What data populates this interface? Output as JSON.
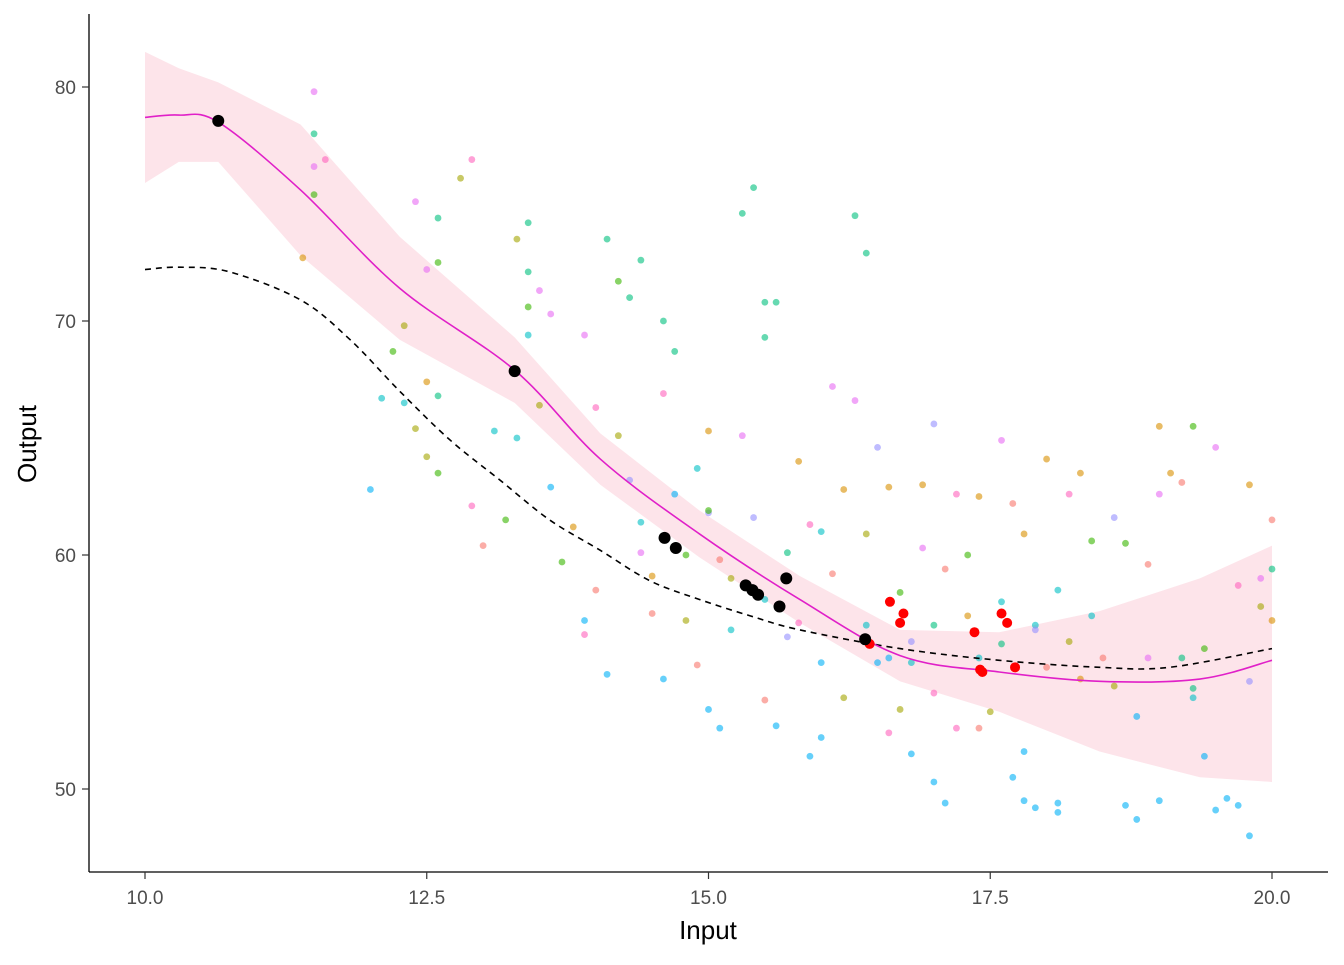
{
  "chart_data": {
    "type": "scatter",
    "title": "",
    "xlabel": "Input",
    "ylabel": "Output",
    "xlim": [
      9.5,
      20.5
    ],
    "ylim": [
      46.4,
      83.1
    ],
    "xticks": [
      10.0,
      12.5,
      15.0,
      17.5,
      20.0
    ],
    "xtick_labels": [
      "10.0",
      "12.5",
      "15.0",
      "17.5",
      "20.0"
    ],
    "yticks": [
      50,
      60,
      70,
      80
    ],
    "ytick_labels": [
      "50",
      "60",
      "70",
      "80"
    ],
    "grid": false,
    "legend": "none",
    "group_colors": [
      "#F8766D",
      "#D89000",
      "#A3A500",
      "#39B600",
      "#00BF7D",
      "#00BFC4",
      "#00B0F6",
      "#9590FF",
      "#E76BF3",
      "#FF62BC"
    ],
    "scatter_points": [
      [
        11.5,
        79.8,
        8
      ],
      [
        11.6,
        76.9,
        9
      ],
      [
        11.5,
        78,
        4
      ],
      [
        11.5,
        75.4,
        3
      ],
      [
        11.4,
        72.7,
        1
      ],
      [
        11.5,
        76.6,
        8
      ],
      [
        12.4,
        75.1,
        8
      ],
      [
        12.6,
        74.4,
        4
      ],
      [
        12.5,
        72.2,
        8
      ],
      [
        12.6,
        72.5,
        3
      ],
      [
        12.8,
        76.1,
        2
      ],
      [
        12.9,
        76.9,
        9
      ],
      [
        12.0,
        62.8,
        6
      ],
      [
        12.1,
        66.7,
        5
      ],
      [
        12.2,
        68.7,
        3
      ],
      [
        12.3,
        69.8,
        2
      ],
      [
        12.5,
        67.4,
        1
      ],
      [
        12.6,
        66.8,
        4
      ],
      [
        12.5,
        64.2,
        2
      ],
      [
        12.6,
        63.5,
        3
      ],
      [
        12.4,
        65.4,
        2
      ],
      [
        12.3,
        66.5,
        5
      ],
      [
        12.9,
        62.1,
        9
      ],
      [
        13.0,
        60.4,
        0
      ],
      [
        13.1,
        65.3,
        5
      ],
      [
        13.2,
        61.5,
        3
      ],
      [
        13.3,
        65.0,
        5
      ],
      [
        13.3,
        73.5,
        2
      ],
      [
        13.4,
        72.1,
        4
      ],
      [
        13.4,
        74.2,
        4
      ],
      [
        13.4,
        70.6,
        3
      ],
      [
        13.4,
        69.4,
        5
      ],
      [
        13.5,
        71.3,
        8
      ],
      [
        13.6,
        70.3,
        8
      ],
      [
        13.5,
        66.4,
        2
      ],
      [
        13.6,
        62.9,
        6
      ],
      [
        13.7,
        59.7,
        3
      ],
      [
        13.8,
        61.2,
        1
      ],
      [
        13.9,
        57.2,
        6
      ],
      [
        13.9,
        69.4,
        8
      ],
      [
        14.0,
        66.3,
        9
      ],
      [
        14.0,
        58.5,
        0
      ],
      [
        14.1,
        73.5,
        4
      ],
      [
        14.2,
        71.7,
        3
      ],
      [
        14.3,
        71.0,
        4
      ],
      [
        14.4,
        72.6,
        4
      ],
      [
        14.2,
        65.1,
        2
      ],
      [
        14.3,
        63.2,
        7
      ],
      [
        14.4,
        61.4,
        5
      ],
      [
        14.5,
        59.1,
        1
      ],
      [
        14.5,
        57.5,
        0
      ],
      [
        14.6,
        70.0,
        4
      ],
      [
        14.7,
        68.7,
        4
      ],
      [
        14.6,
        66.9,
        9
      ],
      [
        14.7,
        62.6,
        6
      ],
      [
        14.8,
        60.0,
        3
      ],
      [
        14.8,
        57.2,
        2
      ],
      [
        14.9,
        55.3,
        0
      ],
      [
        14.9,
        63.7,
        5
      ],
      [
        15.0,
        65.3,
        1
      ],
      [
        15.0,
        61.8,
        7
      ],
      [
        15.1,
        59.8,
        0
      ],
      [
        15.0,
        53.4,
        6
      ],
      [
        15.1,
        52.6,
        6
      ],
      [
        15.2,
        56.8,
        5
      ],
      [
        15.3,
        74.6,
        4
      ],
      [
        15.4,
        75.7,
        4
      ],
      [
        15.5,
        70.8,
        4
      ],
      [
        15.6,
        70.8,
        4
      ],
      [
        15.5,
        69.3,
        4
      ],
      [
        15.3,
        65.1,
        8
      ],
      [
        15.4,
        61.6,
        7
      ],
      [
        15.5,
        58.1,
        5
      ],
      [
        15.5,
        53.8,
        0
      ],
      [
        15.6,
        52.7,
        6
      ],
      [
        15.7,
        56.5,
        7
      ],
      [
        15.8,
        64.0,
        1
      ],
      [
        15.9,
        61.3,
        9
      ],
      [
        15.9,
        51.4,
        6
      ],
      [
        16.0,
        55.4,
        6
      ],
      [
        16.0,
        52.2,
        6
      ],
      [
        16.1,
        59.2,
        0
      ],
      [
        16.1,
        67.2,
        8
      ],
      [
        16.2,
        62.8,
        1
      ],
      [
        16.3,
        74.5,
        4
      ],
      [
        16.4,
        72.9,
        4
      ],
      [
        16.3,
        66.6,
        8
      ],
      [
        16.4,
        60.9,
        2
      ],
      [
        16.4,
        57.0,
        5
      ],
      [
        16.5,
        64.6,
        7
      ],
      [
        16.5,
        55.4,
        6
      ],
      [
        16.6,
        52.4,
        9
      ],
      [
        16.6,
        62.9,
        1
      ],
      [
        16.7,
        58.4,
        3
      ],
      [
        16.7,
        53.4,
        2
      ],
      [
        16.8,
        55.4,
        5
      ],
      [
        16.8,
        51.5,
        6
      ],
      [
        16.9,
        60.3,
        8
      ],
      [
        16.9,
        63.0,
        1
      ],
      [
        17.0,
        50.3,
        6
      ],
      [
        17.0,
        57.0,
        4
      ],
      [
        17.0,
        65.6,
        7
      ],
      [
        17.1,
        49.4,
        6
      ],
      [
        17.1,
        59.4,
        0
      ],
      [
        17.2,
        52.6,
        9
      ],
      [
        17.2,
        62.6,
        9
      ],
      [
        17.3,
        57.4,
        1
      ],
      [
        17.3,
        60.0,
        3
      ],
      [
        17.4,
        62.5,
        1
      ],
      [
        17.4,
        55.6,
        5
      ],
      [
        17.5,
        53.3,
        2
      ],
      [
        17.6,
        64.9,
        8
      ],
      [
        17.6,
        56.2,
        4
      ],
      [
        17.7,
        50.5,
        6
      ],
      [
        17.7,
        62.2,
        0
      ],
      [
        17.8,
        49.5,
        6
      ],
      [
        17.8,
        51.6,
        6
      ],
      [
        17.8,
        60.9,
        1
      ],
      [
        17.9,
        57.0,
        5
      ],
      [
        17.9,
        49.2,
        6
      ],
      [
        18.0,
        64.1,
        1
      ],
      [
        18.0,
        55.2,
        0
      ],
      [
        18.1,
        49.0,
        6
      ],
      [
        18.1,
        49.4,
        6
      ],
      [
        18.1,
        58.5,
        5
      ],
      [
        18.2,
        62.6,
        9
      ],
      [
        18.3,
        63.5,
        1
      ],
      [
        18.4,
        60.6,
        3
      ],
      [
        18.4,
        57.4,
        5
      ],
      [
        18.5,
        55.6,
        0
      ],
      [
        18.6,
        61.6,
        7
      ],
      [
        18.6,
        54.4,
        2
      ],
      [
        18.7,
        49.3,
        6
      ],
      [
        18.7,
        60.5,
        3
      ],
      [
        18.8,
        48.7,
        6
      ],
      [
        18.8,
        53.1,
        6
      ],
      [
        18.9,
        59.6,
        0
      ],
      [
        19.0,
        62.6,
        8
      ],
      [
        19.0,
        49.5,
        6
      ],
      [
        19.0,
        65.5,
        1
      ],
      [
        19.1,
        63.5,
        1
      ],
      [
        19.2,
        55.6,
        4
      ],
      [
        19.2,
        63.1,
        0
      ],
      [
        19.3,
        65.5,
        3
      ],
      [
        19.3,
        53.9,
        5
      ],
      [
        19.4,
        51.4,
        6
      ],
      [
        19.4,
        56.0,
        3
      ],
      [
        19.5,
        49.1,
        6
      ],
      [
        19.5,
        64.6,
        8
      ],
      [
        19.6,
        49.6,
        6
      ],
      [
        19.7,
        58.7,
        9
      ],
      [
        19.7,
        49.3,
        6
      ],
      [
        19.8,
        48.0,
        6
      ],
      [
        19.8,
        63.0,
        1
      ],
      [
        19.8,
        54.6,
        7
      ],
      [
        19.9,
        59.0,
        8
      ],
      [
        19.9,
        57.8,
        2
      ],
      [
        20.0,
        61.5,
        0
      ],
      [
        20.0,
        59.4,
        4
      ],
      [
        20.0,
        57.2,
        1
      ],
      [
        13.9,
        56.6,
        9
      ],
      [
        14.1,
        54.9,
        6
      ],
      [
        14.6,
        54.7,
        6
      ],
      [
        15.2,
        59.0,
        2
      ],
      [
        15.7,
        60.1,
        4
      ],
      [
        16.2,
        53.9,
        2
      ],
      [
        16.6,
        55.6,
        6
      ],
      [
        17.0,
        54.1,
        9
      ],
      [
        17.4,
        52.6,
        0
      ],
      [
        17.9,
        56.8,
        7
      ],
      [
        18.3,
        54.7,
        1
      ],
      [
        18.9,
        55.6,
        8
      ],
      [
        15.0,
        61.9,
        3
      ],
      [
        16.0,
        61.0,
        5
      ],
      [
        14.4,
        60.1,
        8
      ],
      [
        15.8,
        57.1,
        9
      ],
      [
        16.8,
        56.3,
        7
      ],
      [
        17.6,
        58.0,
        5
      ],
      [
        18.2,
        56.3,
        2
      ],
      [
        19.3,
        54.3,
        4
      ]
    ],
    "highlight_black": {
      "color": "#000000",
      "x": [
        10.65,
        13.28,
        14.61,
        14.71,
        15.33,
        15.39,
        15.44,
        15.63,
        15.69,
        16.39
      ],
      "y": [
        78.55,
        67.86,
        60.73,
        60.3,
        58.7,
        58.5,
        58.3,
        57.8,
        59.0,
        56.4
      ]
    },
    "highlight_red": {
      "color": "#FF0000",
      "x": [
        16.43,
        16.61,
        16.7,
        16.73,
        17.36,
        17.41,
        17.43,
        17.6,
        17.65,
        17.72
      ],
      "y": [
        56.2,
        58.0,
        57.1,
        57.5,
        56.7,
        55.1,
        55.0,
        57.5,
        57.1,
        55.2
      ]
    },
    "smooth_fit": {
      "color": "#E020C8",
      "band_color": "#FDE4EA",
      "x": [
        10.0,
        10.3,
        10.65,
        11.38,
        12.26,
        13.28,
        14.04,
        14.92,
        15.81,
        16.7,
        17.58,
        18.47,
        19.36,
        20.0
      ],
      "y": [
        78.7,
        78.8,
        78.5,
        75.6,
        71.4,
        67.9,
        64.1,
        60.9,
        58.1,
        55.7,
        55.0,
        54.6,
        54.7,
        55.5
      ],
      "upper": [
        81.5,
        80.8,
        80.2,
        78.4,
        73.6,
        69.3,
        65.2,
        61.9,
        59.1,
        56.8,
        56.7,
        57.6,
        59.0,
        60.4
      ],
      "lower": [
        75.9,
        76.8,
        76.8,
        72.8,
        69.2,
        66.5,
        63.0,
        59.9,
        57.1,
        54.6,
        53.3,
        51.6,
        50.5,
        50.3
      ]
    },
    "dashed_curve": {
      "color": "#000000",
      "x": [
        10.0,
        10.31,
        10.75,
        11.38,
        11.82,
        12.26,
        12.71,
        13.15,
        13.59,
        14.04,
        14.48,
        14.92,
        15.37,
        15.81,
        16.7,
        17.58,
        18.47,
        19.09,
        20.0
      ],
      "y": [
        72.2,
        72.3,
        72.1,
        70.9,
        69.2,
        67.0,
        64.9,
        63.2,
        61.5,
        60.2,
        58.9,
        58.1,
        57.4,
        56.8,
        56.0,
        55.5,
        55.2,
        55.2,
        56.0
      ]
    }
  }
}
